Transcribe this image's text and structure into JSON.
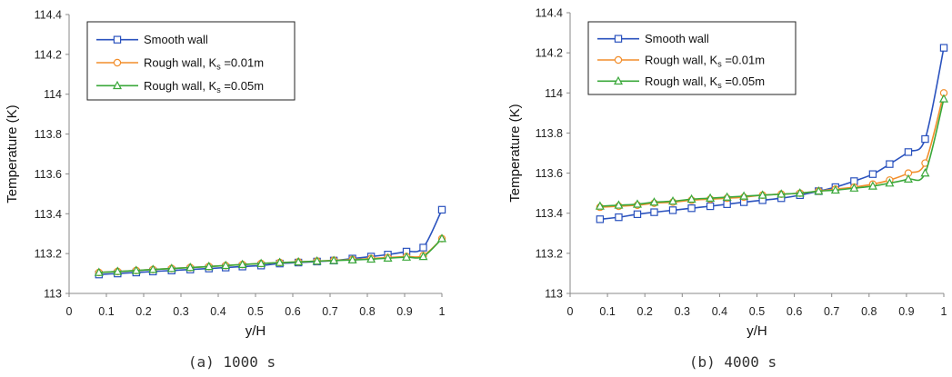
{
  "chart_data": [
    {
      "type": "line",
      "caption": "(a) 1000 s",
      "xlabel": "y/H",
      "ylabel": "Temperature (K)",
      "xlim": [
        0,
        1
      ],
      "ylim": [
        113,
        114.4
      ],
      "xticks": [
        "0",
        "0.1",
        "0.2",
        "0.3",
        "0.4",
        "0.5",
        "0.6",
        "0.7",
        "0.8",
        "0.9",
        "1"
      ],
      "yticks": [
        "113",
        "113.2",
        "113.4",
        "113.6",
        "113.8",
        "114",
        "114.2",
        "114.4"
      ],
      "legend_position": "top-left",
      "x": [
        0.08,
        0.13,
        0.18,
        0.225,
        0.275,
        0.325,
        0.375,
        0.42,
        0.465,
        0.515,
        0.565,
        0.615,
        0.665,
        0.71,
        0.76,
        0.81,
        0.855,
        0.905,
        0.95,
        1.0
      ],
      "series": [
        {
          "name": "Smooth wall",
          "marker": "square",
          "color": "#2a52be",
          "values": [
            113.095,
            113.1,
            113.105,
            113.11,
            113.115,
            113.12,
            113.125,
            113.13,
            113.135,
            113.14,
            113.15,
            113.155,
            113.16,
            113.165,
            113.175,
            113.185,
            113.195,
            113.21,
            113.23,
            113.42
          ]
        },
        {
          "name": "Rough wall, ",
          "subscript_label": "K",
          "subscript": "s",
          "suffix": " =0.01m",
          "marker": "circle",
          "color": "#f28e2b",
          "values": [
            113.105,
            113.11,
            113.115,
            113.12,
            113.125,
            113.13,
            113.135,
            113.14,
            113.145,
            113.15,
            113.155,
            113.158,
            113.162,
            113.166,
            113.17,
            113.175,
            113.18,
            113.185,
            113.19,
            113.275
          ]
        },
        {
          "name": "Rough wall, ",
          "subscript_label": "K",
          "subscript": "s",
          "suffix": " =0.05m",
          "marker": "triangle",
          "color": "#3aa83a",
          "values": [
            113.105,
            113.11,
            113.115,
            113.12,
            113.125,
            113.13,
            113.135,
            113.14,
            113.145,
            113.15,
            113.155,
            113.158,
            113.162,
            113.165,
            113.168,
            113.172,
            113.177,
            113.182,
            113.185,
            113.275
          ]
        }
      ]
    },
    {
      "type": "line",
      "caption": "(b) 4000 s",
      "xlabel": "y/H",
      "ylabel": "Temperature (K)",
      "xlim": [
        0,
        1
      ],
      "ylim": [
        113,
        114.4
      ],
      "xticks": [
        "0",
        "0.1",
        "0.2",
        "0.3",
        "0.4",
        "0.5",
        "0.6",
        "0.7",
        "0.8",
        "0.9",
        "1"
      ],
      "yticks": [
        "113",
        "113.2",
        "113.4",
        "113.6",
        "113.8",
        "114",
        "114.2",
        "114.4"
      ],
      "legend_position": "top-left",
      "x": [
        0.08,
        0.13,
        0.18,
        0.225,
        0.275,
        0.325,
        0.375,
        0.42,
        0.465,
        0.515,
        0.565,
        0.615,
        0.665,
        0.71,
        0.76,
        0.81,
        0.855,
        0.905,
        0.95,
        1.0
      ],
      "series": [
        {
          "name": "Smooth wall",
          "marker": "square",
          "color": "#2a52be",
          "values": [
            113.37,
            113.38,
            113.395,
            113.405,
            113.415,
            113.425,
            113.435,
            113.445,
            113.455,
            113.465,
            113.475,
            113.49,
            113.51,
            113.53,
            113.56,
            113.595,
            113.645,
            113.705,
            113.77,
            114.225
          ]
        },
        {
          "name": "Rough wall, ",
          "subscript_label": "K",
          "subscript": "s",
          "suffix": " =0.01m",
          "marker": "circle",
          "color": "#f28e2b",
          "values": [
            113.43,
            113.435,
            113.44,
            113.45,
            113.455,
            113.465,
            113.47,
            113.475,
            113.48,
            113.49,
            113.495,
            113.5,
            113.51,
            113.52,
            113.53,
            113.545,
            113.565,
            113.6,
            113.65,
            114.0
          ]
        },
        {
          "name": "Rough wall, ",
          "subscript_label": "K",
          "subscript": "s",
          "suffix": " =0.05m",
          "marker": "triangle",
          "color": "#3aa83a",
          "values": [
            113.435,
            113.44,
            113.445,
            113.455,
            113.46,
            113.47,
            113.475,
            113.48,
            113.485,
            113.49,
            113.495,
            113.5,
            113.51,
            113.515,
            113.525,
            113.535,
            113.55,
            113.57,
            113.6,
            113.97
          ]
        }
      ]
    }
  ]
}
